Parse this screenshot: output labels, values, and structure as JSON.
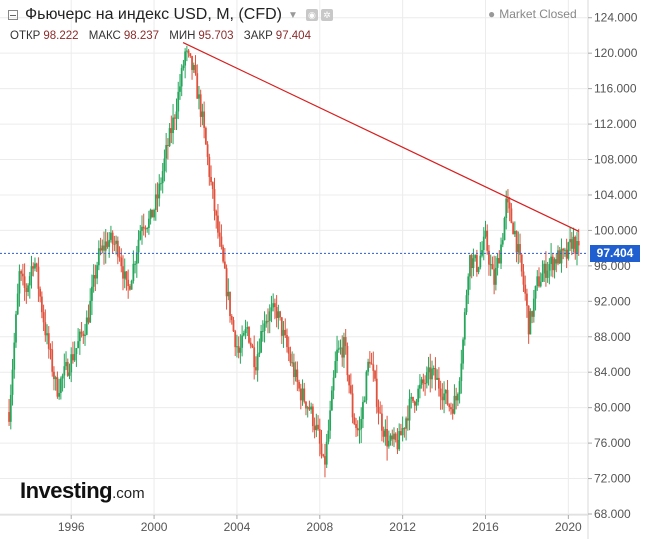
{
  "header": {
    "title": "Фьючерс на индекс USD, M, (CFD)",
    "market_status": "Market Closed",
    "ohlc": [
      {
        "label": "ОТКР",
        "value": "98.222"
      },
      {
        "label": "МАКС",
        "value": "98.237"
      },
      {
        "label": "МИН",
        "value": "95.703"
      },
      {
        "label": "ЗАКР",
        "value": "97.404"
      }
    ]
  },
  "logo": {
    "main": "Investing",
    "suffix": ".com"
  },
  "chart_data": {
    "type": "line",
    "ylim": [
      68,
      126
    ],
    "y_ticks": [
      "68.000",
      "72.000",
      "76.000",
      "80.000",
      "84.000",
      "88.000",
      "92.000",
      "96.000",
      "100.000",
      "104.000",
      "108.000",
      "112.000",
      "116.000",
      "120.000",
      "124.000"
    ],
    "xlim": [
      1992.9,
      2020.9
    ],
    "x_ticks": [
      "1996",
      "2000",
      "2004",
      "2008",
      "2012",
      "2016",
      "2020"
    ],
    "last_price": "97.404",
    "colors": {
      "up": "#26a65b",
      "down": "#e0523d",
      "trendline": "#d81e1e",
      "price_line": "#2d5bd3",
      "grid": "#ececec"
    },
    "trendline": {
      "x": [
        2001.4,
        2020.5
      ],
      "y": [
        121.2,
        99.9
      ]
    },
    "series": [
      {
        "x": [
          1993.0,
          1993.5,
          1993.8,
          1994.2,
          1994.8,
          1995.3,
          1995.7,
          1996.3,
          1996.8,
          1997.3,
          1997.8,
          1998.3,
          1998.7,
          1999.0,
          1999.4,
          1999.8,
          2000.2,
          2000.6,
          2000.9,
          2001.3,
          2001.5,
          2001.9,
          2002.3,
          2002.7,
          2003.0,
          2003.4,
          2003.8,
          2004.1,
          2004.5,
          2004.9,
          2005.3,
          2005.9,
          2006.5,
          2007.0,
          2007.5,
          2007.9,
          2008.2,
          2008.5,
          2008.8,
          2009.2,
          2009.6,
          2009.9,
          2010.4,
          2010.9,
          2011.3,
          2011.8,
          2012.3,
          2012.8,
          2013.4,
          2013.9,
          2014.3,
          2014.6,
          2014.9,
          2015.2,
          2015.6,
          2016.0,
          2016.4,
          2016.8,
          2017.0,
          2017.4,
          2017.9,
          2018.1,
          2018.5,
          2019.0,
          2019.5,
          2019.9,
          2020.2,
          2020.5
        ],
        "values": [
          79.5,
          95,
          93,
          97,
          88,
          82,
          84,
          87,
          90,
          97,
          99,
          98,
          93,
          96,
          101,
          101,
          104,
          109,
          112,
          117,
          120,
          118,
          113,
          106,
          101,
          95,
          89,
          86,
          89,
          85,
          90,
          91,
          86,
          82,
          80,
          77,
          73,
          79,
          86,
          87,
          79,
          77,
          86,
          79,
          76,
          76,
          80,
          82,
          84,
          82,
          80,
          81,
          87,
          97,
          96,
          99,
          94,
          99,
          103,
          100,
          93,
          89,
          94,
          96,
          97,
          97,
          99,
          97.4
        ]
      }
    ]
  }
}
